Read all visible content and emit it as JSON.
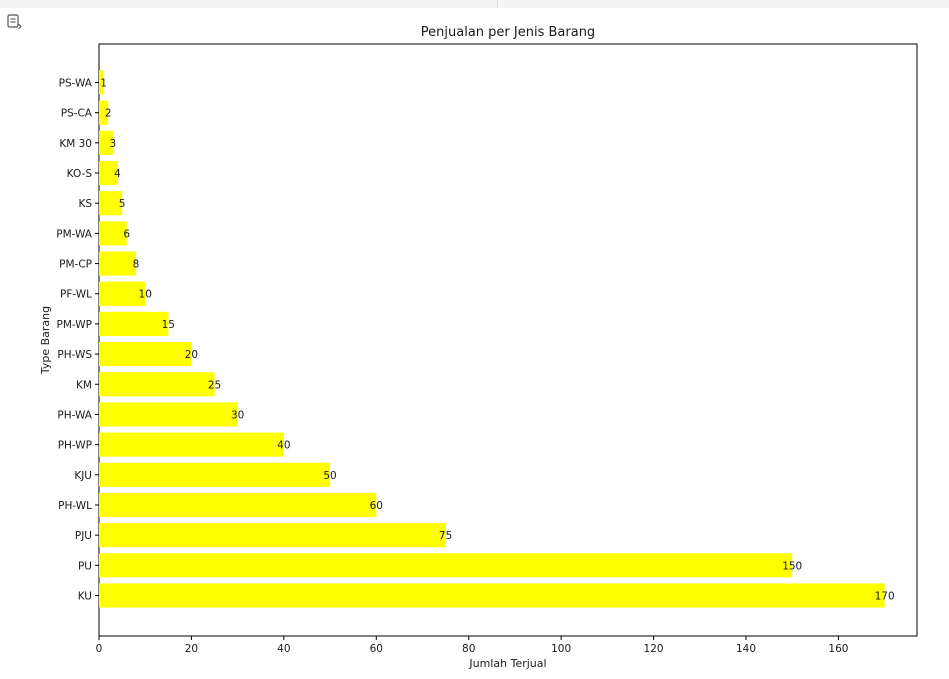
{
  "toolbar": {
    "output_icon": "output-expand-icon"
  },
  "chart_data": {
    "type": "bar",
    "orientation": "horizontal",
    "title": "Penjualan per Jenis Barang",
    "xlabel": "Jumlah Terjual",
    "ylabel": "Type Barang",
    "categories": [
      "KU",
      "PU",
      "PJU",
      "PH-WL",
      "KJU",
      "PH-WP",
      "PH-WA",
      "KM",
      "PH-WS",
      "PM-WP",
      "PF-WL",
      "PM-CP",
      "PM-WA",
      "KS",
      "KO-S",
      "KM 30",
      "PS-CA",
      "PS-WA"
    ],
    "values": [
      170,
      150,
      75,
      60,
      50,
      40,
      30,
      25,
      20,
      15,
      10,
      8,
      6,
      5,
      4,
      3,
      2,
      1
    ],
    "xlim": [
      0,
      177
    ],
    "xticks": [
      0,
      20,
      40,
      60,
      80,
      100,
      120,
      140,
      160
    ],
    "bar_color": "#ffff00",
    "grid": false,
    "legend": "none"
  }
}
